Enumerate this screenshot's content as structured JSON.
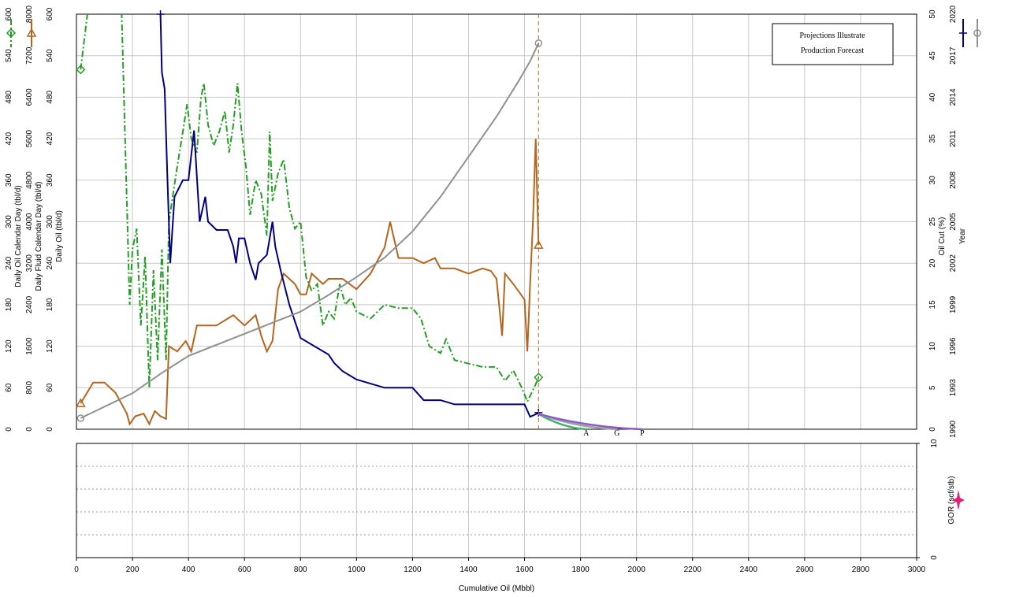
{
  "chart_data": {
    "type": "line",
    "annotation": [
      "Projections Illustrate",
      "Production Forecast"
    ],
    "xlabel": "Cumulative Oil (Mbbl)",
    "xlim": [
      0,
      3000
    ],
    "xticks": [
      0,
      200,
      400,
      600,
      800,
      1000,
      1200,
      1400,
      1600,
      1800,
      2000,
      2200,
      2400,
      2600,
      2800,
      3000
    ],
    "grid": true,
    "axes": [
      {
        "title": "Daily Oil Calendar Day (tbl/d)",
        "side": "left",
        "lim": [
          0,
          600
        ],
        "ticks": [
          0,
          60,
          120,
          180,
          240,
          300,
          360,
          420,
          480,
          540,
          600
        ]
      },
      {
        "title": "Daily Fluid Calendar Day (tbl/d)",
        "side": "left",
        "lim": [
          0,
          8000
        ],
        "ticks": [
          0,
          800,
          1600,
          2400,
          3200,
          4000,
          4800,
          5600,
          6400,
          7200,
          8000
        ]
      },
      {
        "title": "Daily Oil (tbl/d)",
        "side": "left",
        "lim": [
          0,
          600
        ],
        "ticks": [
          0,
          60,
          120,
          180,
          240,
          300,
          360,
          420,
          480,
          540,
          600
        ]
      },
      {
        "title": "Oil Cut (%)",
        "side": "right",
        "lim": [
          0,
          50
        ],
        "ticks": [
          0,
          5,
          10,
          15,
          20,
          25,
          30,
          35,
          40,
          45,
          50
        ]
      },
      {
        "title": "Year",
        "side": "right",
        "lim": [
          1990,
          2020
        ],
        "ticks": [
          1990,
          1993,
          1996,
          1999,
          2002,
          2005,
          2008,
          2011,
          2014,
          2017,
          2020
        ]
      }
    ],
    "series": [
      {
        "axis": 0,
        "color": "#22a022",
        "dash": "dashdot",
        "marker": "diamond",
        "x": [
          15,
          45,
          160,
          190,
          200,
          215,
          230,
          245,
          260,
          275,
          290,
          305,
          320,
          330,
          360,
          380,
          395,
          410,
          430,
          445,
          455,
          470,
          490,
          510,
          530,
          545,
          560,
          575,
          590,
          605,
          620,
          640,
          660,
          680,
          690,
          700,
          720,
          740,
          760,
          780,
          800,
          820,
          840,
          860,
          880,
          900,
          920,
          940,
          960,
          980,
          1000,
          1050,
          1100,
          1150,
          1200,
          1230,
          1260,
          1300,
          1320,
          1350,
          1400,
          1450,
          1500,
          1530,
          1560,
          1590,
          1610,
          1640,
          1650
        ],
        "values": [
          520,
          620,
          620,
          180,
          260,
          290,
          150,
          250,
          60,
          230,
          100,
          260,
          100,
          300,
          380,
          430,
          470,
          420,
          400,
          480,
          500,
          440,
          410,
          430,
          460,
          400,
          440,
          500,
          430,
          380,
          310,
          360,
          340,
          280,
          430,
          330,
          370,
          390,
          320,
          290,
          300,
          220,
          200,
          210,
          150,
          170,
          160,
          210,
          180,
          190,
          170,
          160,
          180,
          175,
          175,
          160,
          120,
          110,
          130,
          100,
          95,
          90,
          90,
          70,
          85,
          60,
          40,
          65,
          75
        ]
      },
      {
        "axis": 1,
        "color": "#b5651d",
        "dash": "solid",
        "marker": "triangle",
        "x": [
          15,
          60,
          100,
          140,
          180,
          190,
          210,
          240,
          260,
          280,
          300,
          320,
          330,
          360,
          390,
          410,
          430,
          460,
          500,
          560,
          600,
          640,
          660,
          680,
          700,
          720,
          740,
          760,
          780,
          800,
          820,
          840,
          880,
          900,
          950,
          1000,
          1050,
          1100,
          1120,
          1150,
          1200,
          1240,
          1280,
          1300,
          1350,
          1400,
          1450,
          1480,
          1500,
          1520,
          1530,
          1560,
          1600,
          1610,
          1620,
          1630,
          1640,
          1650
        ],
        "values": [
          500,
          900,
          900,
          700,
          300,
          100,
          250,
          300,
          100,
          350,
          250,
          200,
          1600,
          1500,
          1700,
          1500,
          2000,
          2000,
          2000,
          2200,
          2000,
          2200,
          1800,
          1500,
          1700,
          2700,
          3000,
          2900,
          2800,
          2600,
          2600,
          3000,
          2800,
          2900,
          2900,
          2700,
          3000,
          3500,
          4000,
          3300,
          3300,
          3200,
          3300,
          3100,
          3100,
          3000,
          3100,
          3050,
          2900,
          1800,
          3000,
          2800,
          2500,
          1500,
          2800,
          4000,
          5600,
          3550
        ]
      },
      {
        "axis": 3,
        "color": "#000080",
        "dash": "solid",
        "marker": "plus",
        "x": [
          300,
          305,
          315,
          325,
          335,
          350,
          380,
          400,
          420,
          440,
          460,
          470,
          500,
          540,
          560,
          570,
          580,
          600,
          620,
          640,
          650,
          680,
          700,
          710,
          730,
          760,
          780,
          800,
          850,
          900,
          920,
          950,
          1000,
          1100,
          1200,
          1240,
          1300,
          1350,
          1400,
          1450,
          1500,
          1600,
          1620,
          1640,
          1650
        ],
        "values": [
          50,
          43,
          41,
          30,
          20,
          28,
          30,
          30,
          36,
          25,
          28,
          25,
          24,
          24,
          22,
          20,
          23,
          23,
          20,
          18,
          20,
          21,
          25,
          22,
          19,
          15,
          13,
          11,
          10,
          9,
          8,
          7,
          6,
          5,
          5,
          3.5,
          3.5,
          3,
          3,
          3,
          3,
          3,
          1.5,
          1.8,
          2
        ]
      },
      {
        "axis": 4,
        "color": "#909090",
        "dash": "solid",
        "marker": "circle",
        "x": [
          15,
          200,
          300,
          400,
          600,
          800,
          900,
          1000,
          1100,
          1200,
          1300,
          1400,
          1500,
          1580,
          1620,
          1650
        ],
        "values": [
          1990.8,
          1992.6,
          1994.0,
          1995.3,
          1996.9,
          1998.5,
          1999.7,
          2001.0,
          2002.4,
          2004.3,
          2006.8,
          2009.7,
          2012.6,
          2015.2,
          2016.6,
          2017.9
        ]
      }
    ],
    "forecast_start": 1650,
    "forecasts": [
      {
        "label": "A",
        "axis": 0,
        "color": "#3cb371",
        "x": [
          1650,
          1820
        ],
        "values": [
          22,
          0
        ]
      },
      {
        "label": "G",
        "axis": 0,
        "color": "#a0a0a0",
        "x": [
          1650,
          1930
        ],
        "values": [
          22,
          0
        ]
      },
      {
        "label": "P",
        "axis": 0,
        "color": "#8a5cc8",
        "x": [
          1650,
          2020
        ],
        "values": [
          22,
          0
        ]
      }
    ],
    "lower_panel": {
      "ylabel": "GOR (scf/stb)",
      "ylim": [
        0,
        10
      ],
      "yticks": [
        0,
        10
      ],
      "minor_grid": [
        2,
        4,
        6,
        8
      ]
    }
  }
}
